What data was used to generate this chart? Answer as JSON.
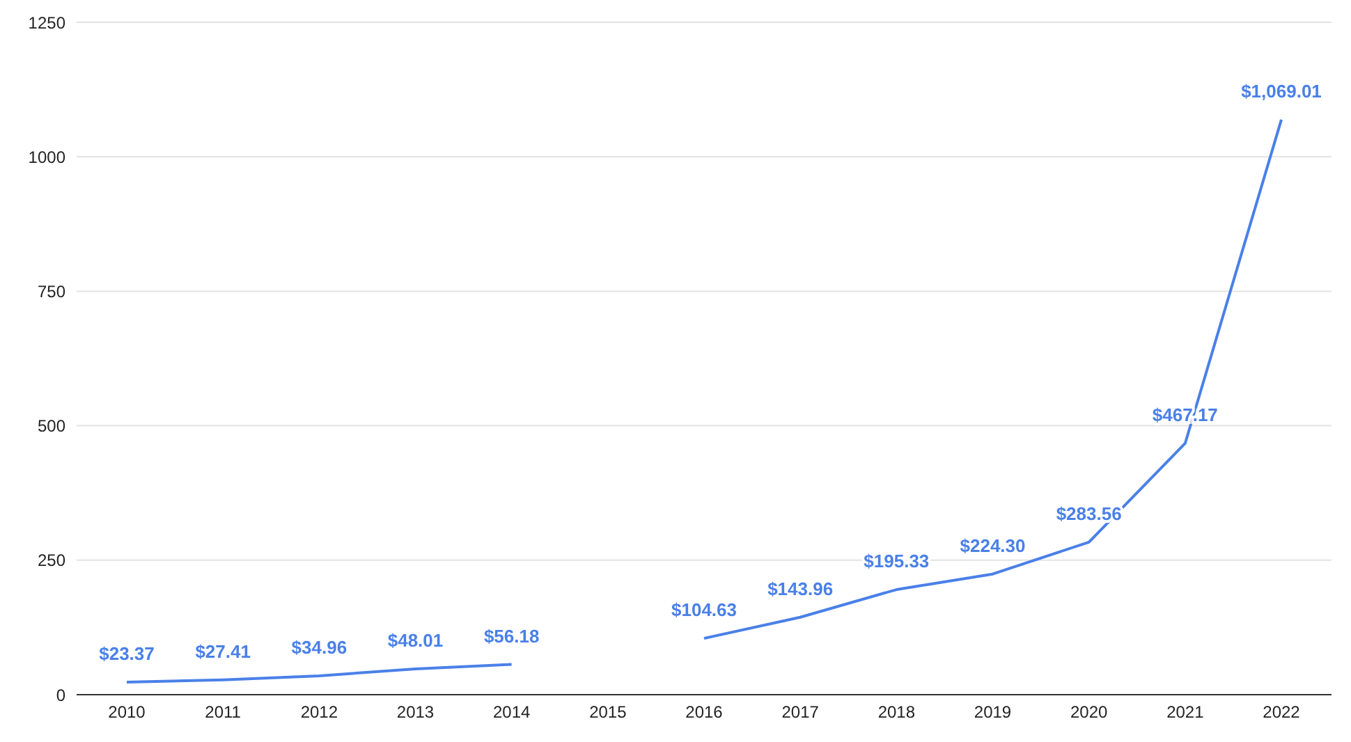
{
  "chart_data": {
    "type": "line",
    "categories": [
      "2010",
      "2011",
      "2012",
      "2013",
      "2014",
      "2015",
      "2016",
      "2017",
      "2018",
      "2019",
      "2020",
      "2021",
      "2022"
    ],
    "series": [
      {
        "color": "#4a80e8",
        "values": [
          23.37,
          27.41,
          34.96,
          48.01,
          56.18,
          null,
          104.63,
          143.96,
          195.33,
          224.3,
          283.56,
          467.17,
          1069.01
        ],
        "value_labels": [
          "$23.37",
          "$27.41",
          "$34.96",
          "$48.01",
          "$56.18",
          null,
          "$104.63",
          "$143.96",
          "$195.33",
          "$224.30",
          "$283.56",
          "$467.17",
          "$1,069.01"
        ]
      }
    ],
    "ylim": [
      0,
      1250
    ],
    "yticks": [
      0,
      250,
      500,
      750,
      1000,
      1250
    ],
    "grid": "y",
    "legend": false,
    "marker": "none",
    "line_style": "solid"
  }
}
